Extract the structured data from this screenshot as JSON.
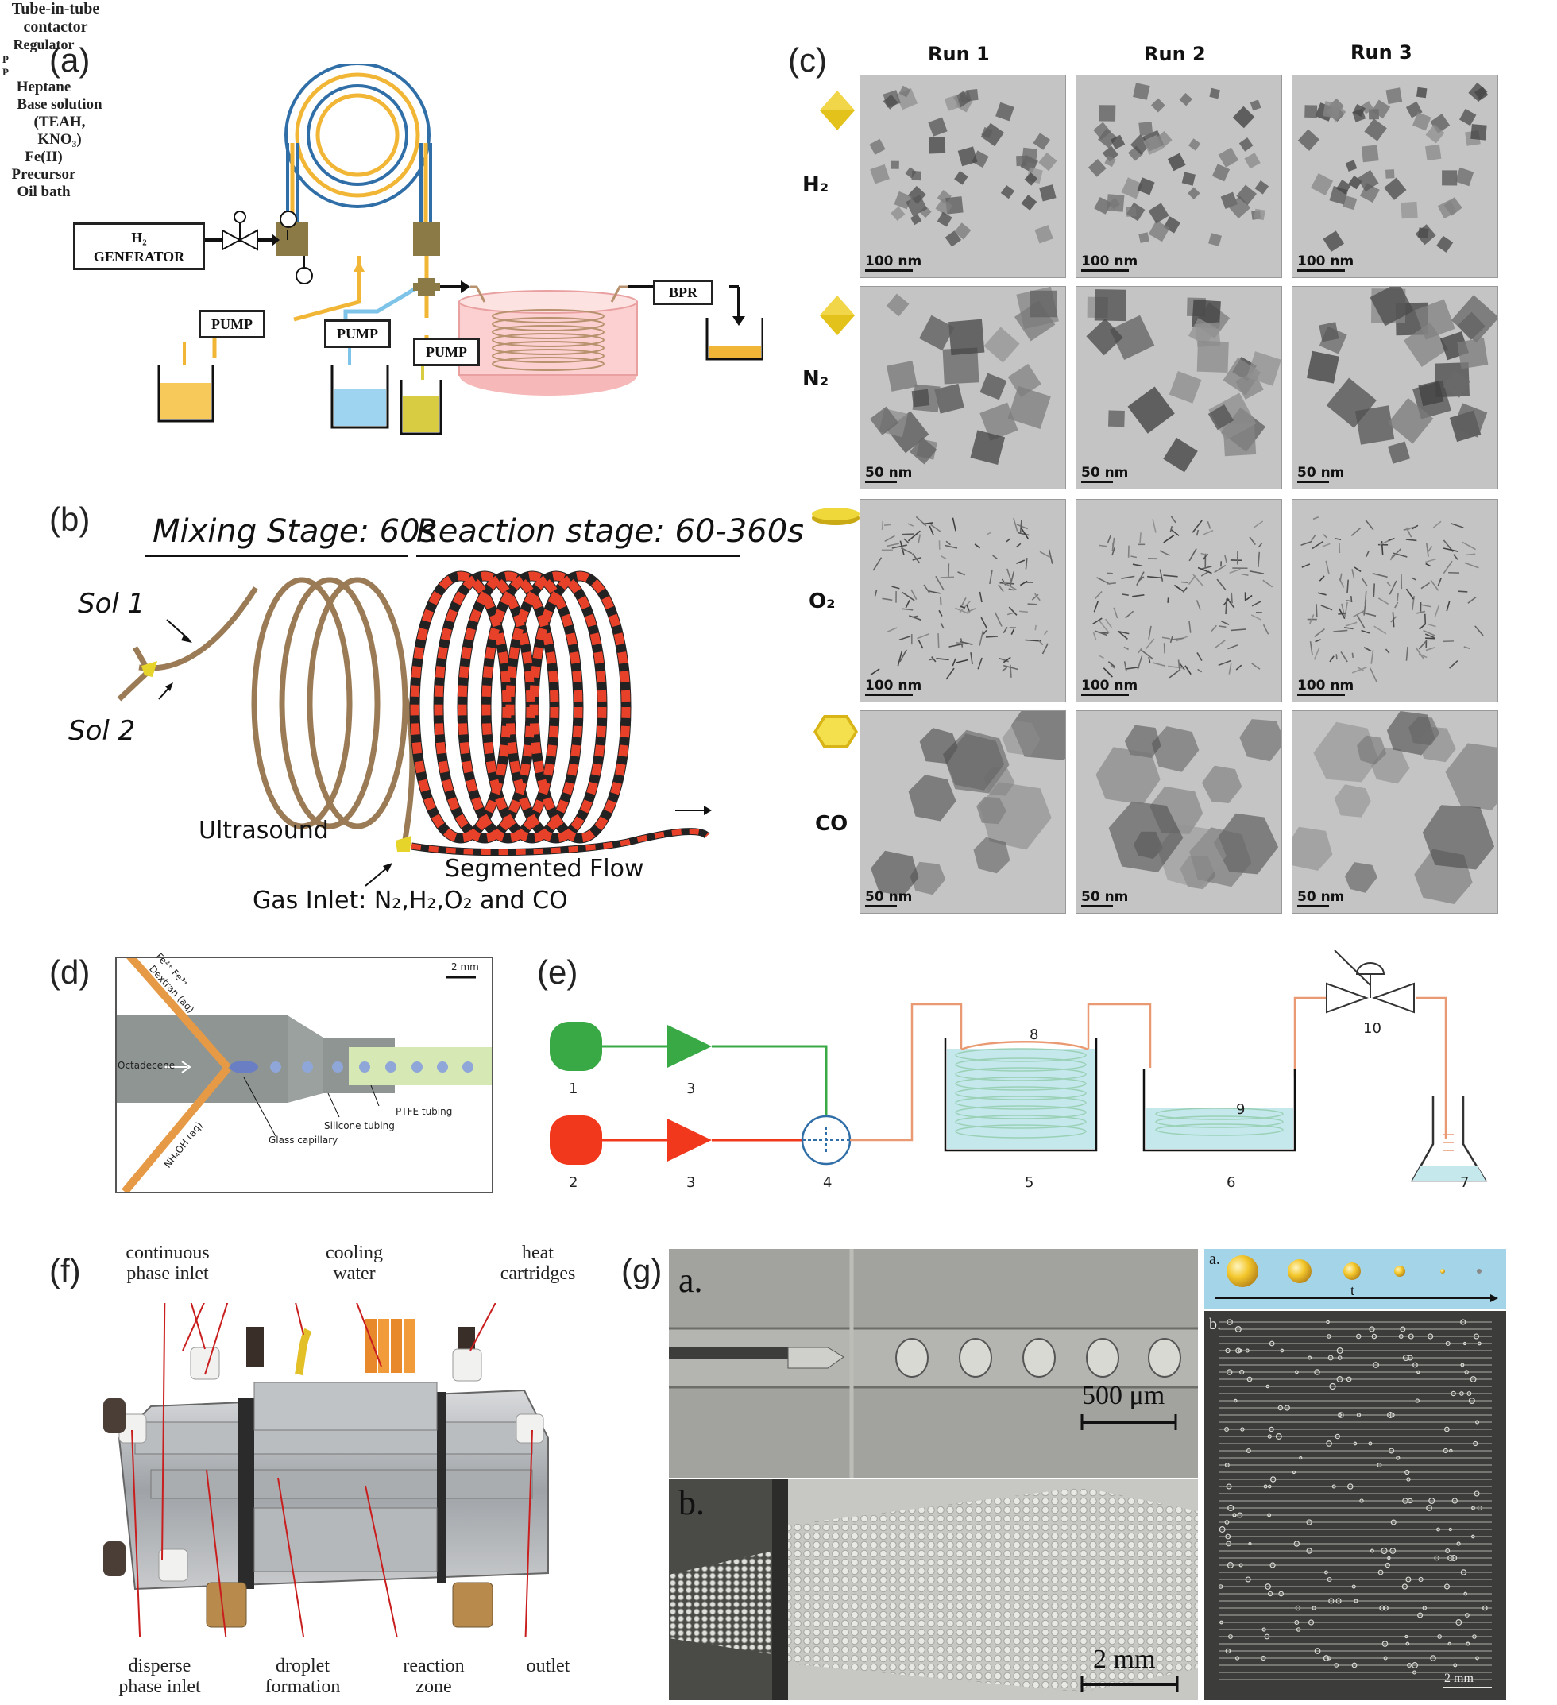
{
  "panels": {
    "a": "(a)",
    "b": "(b)",
    "c": "(c)",
    "d": "(d)",
    "e": "(e)",
    "f": "(f)",
    "g": "(g)"
  },
  "panel_a": {
    "tube_in_tube": "Tube-in-tube",
    "contactor": "contactor",
    "h2": "H₂",
    "generator": "GENERATOR",
    "regulator": "Regulator",
    "p_gauge": "P",
    "pump": "PUMP",
    "bpr": "BPR",
    "heptane": "Heptane",
    "base_solution": "Base solution",
    "teah": "(TEAH,",
    "kno3": "KNO₃)",
    "fe_precursor_1": "Fe(II)",
    "fe_precursor_2": "Precursor",
    "oil_bath": "Oil bath"
  },
  "panel_b": {
    "mixing_stage": "Mixing Stage: 60s",
    "reaction_stage": "Reaction stage: 60-360s",
    "sol1": "Sol 1",
    "sol2": "Sol 2",
    "ultrasound": "Ultrasound",
    "segmented_flow": "Segmented Flow",
    "gas_inlet": "Gas Inlet: N₂,H₂,O₂ and CO"
  },
  "panel_c": {
    "runs": [
      "Run 1",
      "Run 2",
      "Run 3"
    ],
    "gases": [
      "H₂",
      "N₂",
      "O₂",
      "CO"
    ],
    "scales": [
      [
        "100 nm",
        "100 nm",
        "100 nm"
      ],
      [
        "50 nm",
        "50 nm",
        "50 nm"
      ],
      [
        "100 nm",
        "100 nm",
        "100 nm"
      ],
      [
        "50 nm",
        "50 nm",
        "50 nm"
      ]
    ]
  },
  "panel_d": {
    "scale": "2 mm",
    "fe_label": "Fe²⁺ Fe³⁺",
    "dextran": "Dextran (aq)",
    "octadecene": "Octadecene",
    "nh4oh": "NH₄OH (aq)",
    "glass_capillary": "Glass capillary",
    "silicone_tubing": "Silicone tubing",
    "ptfe_tubing": "PTFE tubing"
  },
  "panel_e": {
    "numbers": [
      "1",
      "2",
      "3",
      "3",
      "4",
      "5",
      "6",
      "7",
      "8",
      "9",
      "10"
    ]
  },
  "panel_f": {
    "continuous_1": "continuous",
    "continuous_2": "phase inlet",
    "cooling_1": "cooling",
    "cooling_2": "water",
    "heat_1": "heat",
    "heat_2": "cartridges",
    "disperse_1": "disperse",
    "disperse_2": "phase inlet",
    "droplet_1": "droplet",
    "droplet_2": "formation",
    "reaction_1": "reaction",
    "reaction_2": "zone",
    "outlet": "outlet"
  },
  "panel_g": {
    "a": "a.",
    "b": "b.",
    "scale_a": "500 μm",
    "scale_b": "2 mm",
    "right_a": "a.",
    "right_b": "b.",
    "t": "t",
    "scale_right": "2 mm"
  },
  "colors": {
    "orange_line": "#f2b636",
    "blue_line": "#2f6ea6",
    "brass": "#8b7a45",
    "red_segment": "#e8412a",
    "coil_tan": "#9a7b55",
    "green": "#39a946",
    "red": "#f2381c",
    "copper": "#e99a72"
  }
}
